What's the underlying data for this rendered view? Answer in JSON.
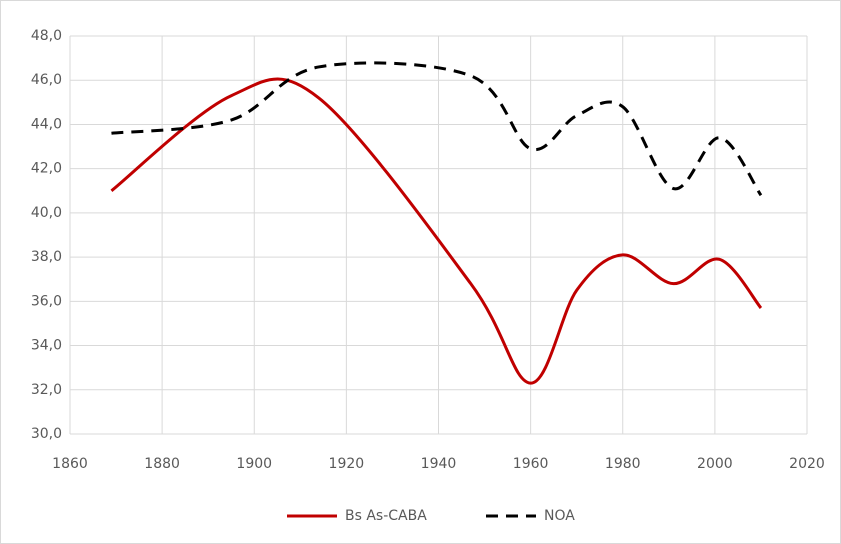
{
  "chart_data": {
    "type": "line",
    "x": [
      1869,
      1895,
      1914,
      1947,
      1960,
      1970,
      1980,
      1991,
      2001,
      2010
    ],
    "series": [
      {
        "name": "Bs As-CABA",
        "color": "#c00000",
        "dash": false,
        "values": [
          41.0,
          45.3,
          45.2,
          36.8,
          32.3,
          36.5,
          38.1,
          36.8,
          37.9,
          35.7
        ]
      },
      {
        "name": "NOA",
        "color": "#000000",
        "dash": true,
        "values": [
          43.6,
          44.2,
          46.6,
          46.2,
          42.9,
          44.4,
          44.8,
          41.1,
          43.4,
          40.8
        ]
      }
    ],
    "xlim": [
      1860,
      2020
    ],
    "xticks": [
      1860,
      1880,
      1900,
      1920,
      1940,
      1960,
      1980,
      2000,
      2020
    ],
    "ylim": [
      30,
      48
    ],
    "yticks": [
      {
        "value": 30,
        "label": "30,0"
      },
      {
        "value": 32,
        "label": "32,0"
      },
      {
        "value": 34,
        "label": "34,0"
      },
      {
        "value": 36,
        "label": "36,0"
      },
      {
        "value": 38,
        "label": "38,0"
      },
      {
        "value": 40,
        "label": "40,0"
      },
      {
        "value": 42,
        "label": "42,0"
      },
      {
        "value": 44,
        "label": "44,0"
      },
      {
        "value": 46,
        "label": "46,0"
      },
      {
        "value": 48,
        "label": "48,0"
      }
    ],
    "grid": true,
    "legend": "bottom"
  }
}
